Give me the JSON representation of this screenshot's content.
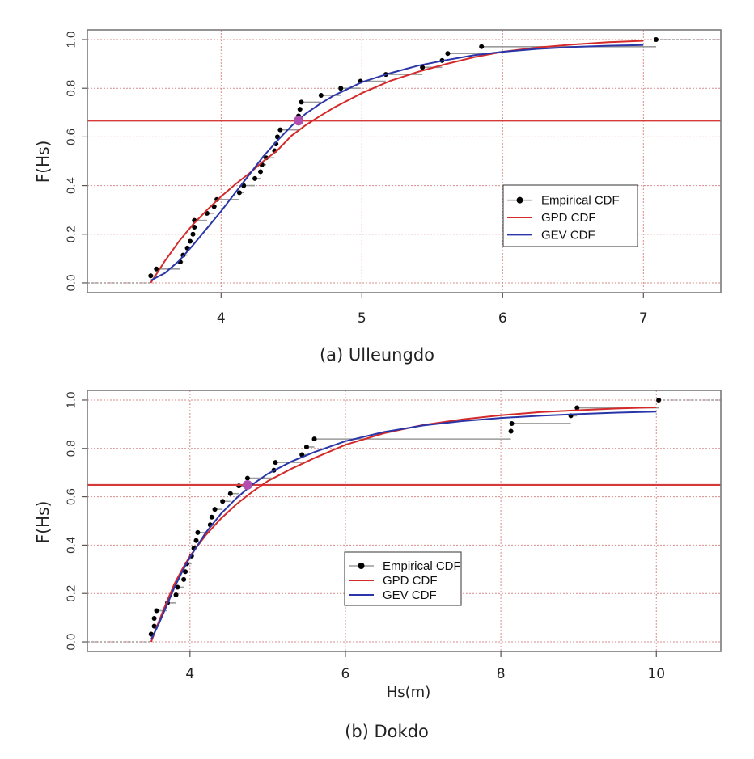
{
  "figure": {
    "colors": {
      "empirical": "#000000",
      "empirical_step": "#9a9a9a",
      "gpd": "#d42a2a",
      "gev": "#2a35a8",
      "threshold_line": "#d43a3a",
      "marker": "#b14fb0",
      "grid": "#d98b8b"
    }
  },
  "chart_data": [
    {
      "type": "line",
      "id": "a",
      "caption": "(a) Ulleungdo",
      "title": "",
      "xlabel": "",
      "ylabel": "F(Hs)",
      "xlim": [
        3.05,
        7.55
      ],
      "ylim": [
        -0.04,
        1.04
      ],
      "xticks": [
        4,
        5,
        6,
        7
      ],
      "xtick_labels": [
        "4",
        "5",
        "6",
        "7"
      ],
      "yticks": [
        0.0,
        0.2,
        0.4,
        0.6,
        0.8,
        1.0
      ],
      "ytick_labels": [
        "0.0",
        "0.2",
        "0.4",
        "0.6",
        "0.8",
        "1.0"
      ],
      "grid": true,
      "legend": {
        "position": "center-right",
        "entries": [
          "Empirical CDF",
          "GPD CDF",
          "GEV CDF"
        ]
      },
      "threshold_line_y": 0.667,
      "highlight_point": {
        "x": 4.55,
        "y": 0.667
      },
      "empirical_start_x": 3.05,
      "empirical": [
        {
          "x": 3.5,
          "y": 0.029
        },
        {
          "x": 3.54,
          "y": 0.057
        },
        {
          "x": 3.71,
          "y": 0.086
        },
        {
          "x": 3.73,
          "y": 0.114
        },
        {
          "x": 3.76,
          "y": 0.143
        },
        {
          "x": 3.78,
          "y": 0.171
        },
        {
          "x": 3.8,
          "y": 0.2
        },
        {
          "x": 3.81,
          "y": 0.229
        },
        {
          "x": 3.81,
          "y": 0.257
        },
        {
          "x": 3.9,
          "y": 0.286
        },
        {
          "x": 3.95,
          "y": 0.314
        },
        {
          "x": 3.97,
          "y": 0.343
        },
        {
          "x": 4.13,
          "y": 0.371
        },
        {
          "x": 4.16,
          "y": 0.4
        },
        {
          "x": 4.24,
          "y": 0.429
        },
        {
          "x": 4.28,
          "y": 0.457
        },
        {
          "x": 4.29,
          "y": 0.486
        },
        {
          "x": 4.32,
          "y": 0.514
        },
        {
          "x": 4.38,
          "y": 0.543
        },
        {
          "x": 4.39,
          "y": 0.571
        },
        {
          "x": 4.4,
          "y": 0.6
        },
        {
          "x": 4.42,
          "y": 0.629
        },
        {
          "x": 4.55,
          "y": 0.657
        },
        {
          "x": 4.55,
          "y": 0.686
        },
        {
          "x": 4.56,
          "y": 0.714
        },
        {
          "x": 4.57,
          "y": 0.743
        },
        {
          "x": 4.71,
          "y": 0.771
        },
        {
          "x": 4.85,
          "y": 0.8
        },
        {
          "x": 4.99,
          "y": 0.829
        },
        {
          "x": 5.17,
          "y": 0.857
        },
        {
          "x": 5.43,
          "y": 0.886
        },
        {
          "x": 5.57,
          "y": 0.914
        },
        {
          "x": 5.61,
          "y": 0.943
        },
        {
          "x": 5.85,
          "y": 0.971
        },
        {
          "x": 7.09,
          "y": 1.0
        }
      ],
      "series": [
        {
          "name": "GPD CDF",
          "x": [
            3.5,
            3.6,
            3.7,
            3.8,
            3.9,
            4.0,
            4.1,
            4.2,
            4.3,
            4.4,
            4.5,
            4.6,
            4.7,
            4.8,
            5.0,
            5.2,
            5.4,
            5.6,
            5.8,
            6.0,
            6.25,
            6.5,
            6.75,
            7.0
          ],
          "y": [
            0.0,
            0.09,
            0.17,
            0.24,
            0.3,
            0.355,
            0.405,
            0.45,
            0.5,
            0.545,
            0.605,
            0.648,
            0.685,
            0.72,
            0.78,
            0.83,
            0.868,
            0.9,
            0.928,
            0.95,
            0.968,
            0.98,
            0.989,
            0.995
          ]
        },
        {
          "name": "GEV CDF",
          "x": [
            3.5,
            3.55,
            3.6,
            3.7,
            3.8,
            3.9,
            4.0,
            4.1,
            4.2,
            4.3,
            4.4,
            4.5,
            4.6,
            4.7,
            4.8,
            5.0,
            5.2,
            5.4,
            5.6,
            5.8,
            6.0,
            6.25,
            6.5,
            6.75,
            7.0
          ],
          "y": [
            0.01,
            0.025,
            0.04,
            0.09,
            0.155,
            0.225,
            0.295,
            0.37,
            0.445,
            0.52,
            0.585,
            0.645,
            0.695,
            0.735,
            0.77,
            0.825,
            0.862,
            0.893,
            0.916,
            0.936,
            0.95,
            0.962,
            0.97,
            0.975,
            0.978
          ]
        }
      ]
    },
    {
      "type": "line",
      "id": "b",
      "caption": "(b) Dokdo",
      "title": "",
      "xlabel": "Hs(m)",
      "ylabel": "F(Hs)",
      "xlim": [
        2.68,
        10.83
      ],
      "ylim": [
        -0.04,
        1.04
      ],
      "xticks": [
        4,
        6,
        8,
        10
      ],
      "xtick_labels": [
        "4",
        "6",
        "8",
        "10"
      ],
      "yticks": [
        0.0,
        0.2,
        0.4,
        0.6,
        0.8,
        1.0
      ],
      "ytick_labels": [
        "0.0",
        "0.2",
        "0.4",
        "0.6",
        "0.8",
        "1.0"
      ],
      "grid": true,
      "legend": {
        "position": "center",
        "entries": [
          "Empirical CDF",
          "GPD CDF",
          "GEV CDF"
        ]
      },
      "threshold_line_y": 0.649,
      "highlight_point": {
        "x": 4.74,
        "y": 0.649
      },
      "empirical_start_x": 2.68,
      "empirical": [
        {
          "x": 3.5,
          "y": 0.032
        },
        {
          "x": 3.54,
          "y": 0.065
        },
        {
          "x": 3.54,
          "y": 0.097
        },
        {
          "x": 3.57,
          "y": 0.129
        },
        {
          "x": 3.71,
          "y": 0.161
        },
        {
          "x": 3.82,
          "y": 0.194
        },
        {
          "x": 3.84,
          "y": 0.226
        },
        {
          "x": 3.92,
          "y": 0.258
        },
        {
          "x": 3.94,
          "y": 0.29
        },
        {
          "x": 3.96,
          "y": 0.323
        },
        {
          "x": 4.02,
          "y": 0.355
        },
        {
          "x": 4.05,
          "y": 0.387
        },
        {
          "x": 4.08,
          "y": 0.419
        },
        {
          "x": 4.1,
          "y": 0.452
        },
        {
          "x": 4.26,
          "y": 0.484
        },
        {
          "x": 4.28,
          "y": 0.516
        },
        {
          "x": 4.32,
          "y": 0.548
        },
        {
          "x": 4.42,
          "y": 0.581
        },
        {
          "x": 4.52,
          "y": 0.613
        },
        {
          "x": 4.63,
          "y": 0.645
        },
        {
          "x": 4.74,
          "y": 0.677
        },
        {
          "x": 5.08,
          "y": 0.71
        },
        {
          "x": 5.1,
          "y": 0.742
        },
        {
          "x": 5.44,
          "y": 0.774
        },
        {
          "x": 5.5,
          "y": 0.806
        },
        {
          "x": 5.6,
          "y": 0.839
        },
        {
          "x": 8.13,
          "y": 0.871
        },
        {
          "x": 8.14,
          "y": 0.903
        },
        {
          "x": 8.9,
          "y": 0.935
        },
        {
          "x": 8.98,
          "y": 0.968
        },
        {
          "x": 10.03,
          "y": 1.0
        }
      ],
      "series": [
        {
          "name": "GPD CDF",
          "x": [
            3.5,
            3.6,
            3.7,
            3.8,
            3.9,
            4.0,
            4.2,
            4.4,
            4.6,
            4.8,
            5.0,
            5.3,
            5.6,
            6.0,
            6.5,
            7.0,
            7.5,
            8.0,
            8.5,
            9.0,
            9.5,
            10.0
          ],
          "y": [
            0.0,
            0.085,
            0.165,
            0.24,
            0.3,
            0.355,
            0.44,
            0.51,
            0.57,
            0.62,
            0.665,
            0.715,
            0.76,
            0.815,
            0.863,
            0.897,
            0.92,
            0.937,
            0.95,
            0.958,
            0.965,
            0.97
          ]
        },
        {
          "name": "GEV CDF",
          "x": [
            3.5,
            3.6,
            3.7,
            3.8,
            3.9,
            4.0,
            4.2,
            4.4,
            4.6,
            4.8,
            5.0,
            5.3,
            5.6,
            6.0,
            6.5,
            7.0,
            7.5,
            8.0,
            8.5,
            9.0,
            9.5,
            10.0
          ],
          "y": [
            0.01,
            0.075,
            0.15,
            0.225,
            0.29,
            0.35,
            0.45,
            0.53,
            0.595,
            0.65,
            0.695,
            0.745,
            0.785,
            0.83,
            0.868,
            0.895,
            0.913,
            0.926,
            0.935,
            0.942,
            0.948,
            0.952
          ]
        }
      ]
    }
  ]
}
